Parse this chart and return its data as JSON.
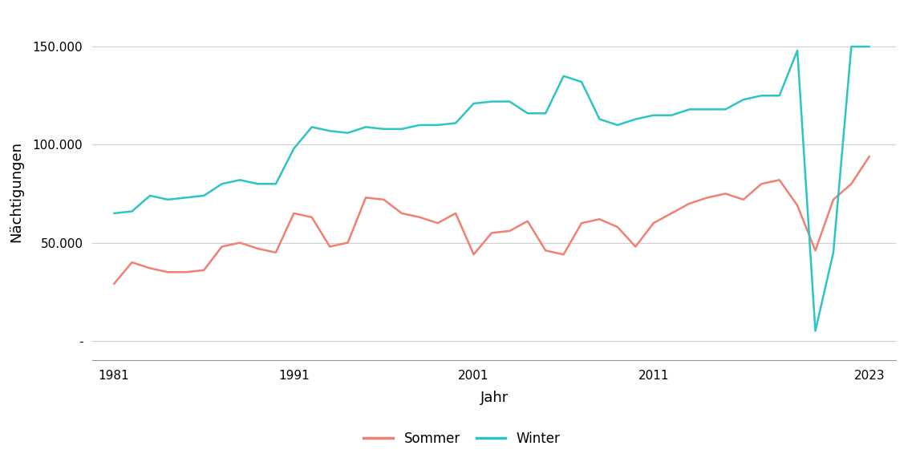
{
  "years": [
    1981,
    1982,
    1983,
    1984,
    1985,
    1986,
    1987,
    1988,
    1989,
    1990,
    1991,
    1992,
    1993,
    1994,
    1995,
    1996,
    1997,
    1998,
    1999,
    2000,
    2001,
    2002,
    2003,
    2004,
    2005,
    2006,
    2007,
    2008,
    2009,
    2010,
    2011,
    2012,
    2013,
    2014,
    2015,
    2016,
    2017,
    2018,
    2019,
    2020,
    2021,
    2022,
    2023
  ],
  "sommer": [
    29000,
    40000,
    37000,
    35000,
    35000,
    36000,
    48000,
    50000,
    47000,
    45000,
    65000,
    63000,
    48000,
    50000,
    73000,
    72000,
    65000,
    63000,
    60000,
    65000,
    44000,
    55000,
    56000,
    61000,
    46000,
    44000,
    60000,
    62000,
    58000,
    48000,
    60000,
    65000,
    70000,
    73000,
    75000,
    72000,
    80000,
    82000,
    69000,
    46000,
    72000,
    80000,
    94000
  ],
  "winter": [
    65000,
    66000,
    74000,
    72000,
    73000,
    74000,
    80000,
    82000,
    80000,
    80000,
    98000,
    109000,
    107000,
    106000,
    109000,
    108000,
    108000,
    110000,
    110000,
    111000,
    121000,
    122000,
    122000,
    116000,
    116000,
    135000,
    132000,
    113000,
    110000,
    113000,
    115000,
    115000,
    118000,
    118000,
    118000,
    123000,
    125000,
    125000,
    148000,
    5000,
    45000,
    150000,
    150000
  ],
  "sommer_color": "#f08070",
  "winter_color": "#2ec4c4",
  "ylabel": "Nächtigungen",
  "xlabel": "Jahr",
  "ylim_min": -10000,
  "ylim_max": 162000,
  "yticks": [
    0,
    50000,
    100000,
    150000
  ],
  "ytick_labels": [
    "-",
    "50.000",
    "100.000",
    "150.000"
  ],
  "xticks": [
    1981,
    1991,
    2001,
    2011,
    2023
  ],
  "xlim_min": 1979.8,
  "xlim_max": 2024.5,
  "background_color": "#ffffff",
  "grid_color": "#d0d0d0",
  "line_width": 1.8,
  "legend_labels": [
    "Sommer",
    "Winter"
  ],
  "title_fontsize": 12,
  "axis_fontsize": 13,
  "tick_fontsize": 11
}
